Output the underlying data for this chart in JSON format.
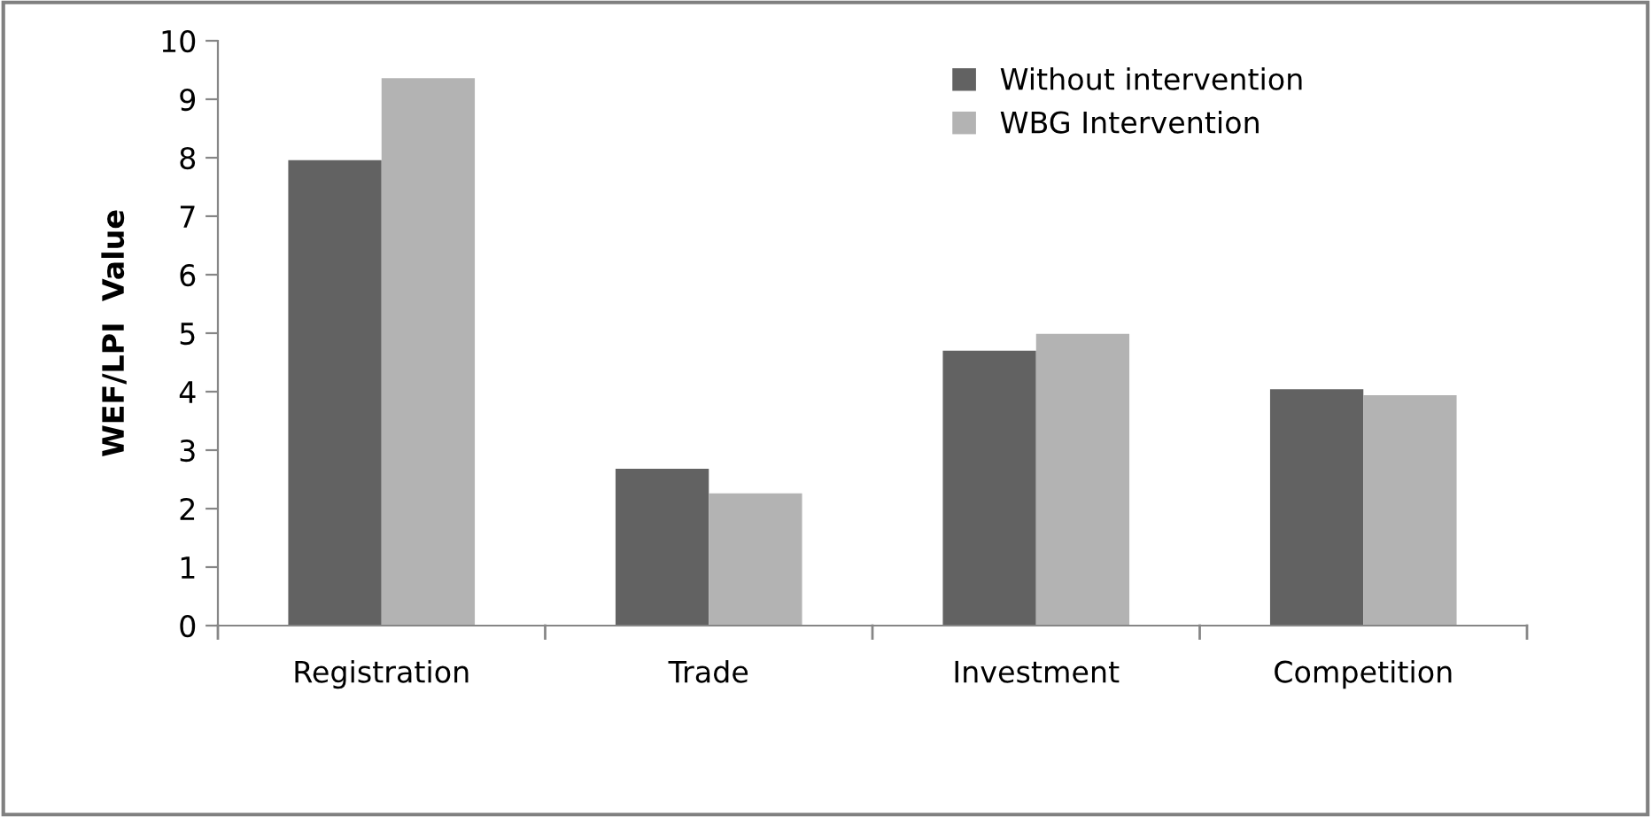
{
  "chart_data": {
    "type": "bar",
    "ylabel": "WEF/LPI  Value",
    "categories": [
      "Registration",
      "Trade",
      "Investment",
      "Competition"
    ],
    "series": [
      {
        "name": "Without intervention",
        "color": "#626262",
        "values": [
          7.96,
          2.68,
          4.7,
          4.04
        ]
      },
      {
        "name": "WBG Intervention",
        "color": "#b3b3b3",
        "values": [
          9.36,
          2.26,
          4.99,
          3.94
        ]
      }
    ],
    "ylim": [
      0,
      10
    ],
    "yticks": [
      0,
      1,
      2,
      3,
      4,
      5,
      6,
      7,
      8,
      9,
      10
    ],
    "grid": false,
    "legend": "top right"
  }
}
